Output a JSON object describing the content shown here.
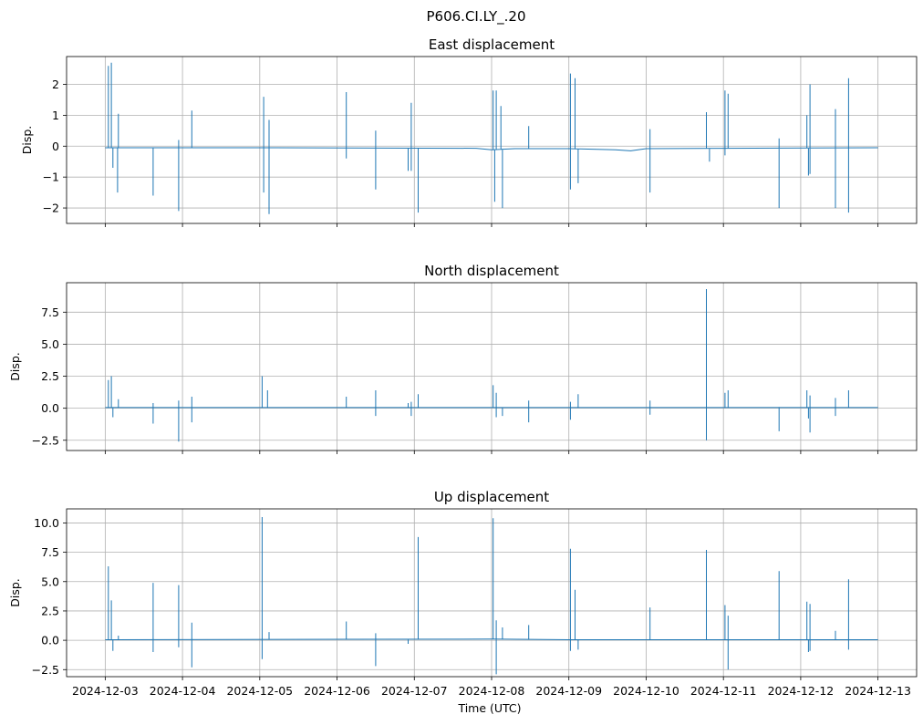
{
  "suptitle": "P606.CI.LY_.20",
  "xlabel": "Time (UTC)",
  "x_ticks": [
    "2024-12-03",
    "2024-12-04",
    "2024-12-05",
    "2024-12-06",
    "2024-12-07",
    "2024-12-08",
    "2024-12-09",
    "2024-12-10",
    "2024-12-11",
    "2024-12-12",
    "2024-12-13"
  ],
  "colors": {
    "line": "#1f77b4",
    "grid": "#b0b0b0"
  },
  "chart_data": [
    {
      "type": "line",
      "title": "East displacement",
      "ylabel": "Disp.",
      "xlim": [
        -0.5,
        10.5
      ],
      "ylim": [
        -2.5,
        2.9
      ],
      "y_ticks": [
        -2,
        -1,
        0,
        1,
        2
      ],
      "y_tick_labels": [
        "−2",
        "−1",
        "0",
        "1",
        "2"
      ],
      "baseline": [
        [
          0,
          -0.05
        ],
        [
          2.2,
          -0.05
        ],
        [
          4.8,
          -0.07
        ],
        [
          5.0,
          -0.12
        ],
        [
          5.3,
          -0.08
        ],
        [
          6.0,
          -0.08
        ],
        [
          6.6,
          -0.12
        ],
        [
          6.8,
          -0.15
        ],
        [
          7.0,
          -0.08
        ],
        [
          10.0,
          -0.05
        ]
      ],
      "spikes": [
        [
          0.04,
          2.6
        ],
        [
          0.08,
          2.7
        ],
        [
          0.1,
          -0.7
        ],
        [
          0.17,
          1.05
        ],
        [
          0.16,
          -1.5
        ],
        [
          0.62,
          -1.6
        ],
        [
          0.95,
          0.2
        ],
        [
          0.95,
          -2.1
        ],
        [
          1.12,
          1.15
        ],
        [
          2.05,
          1.6
        ],
        [
          2.05,
          -1.5
        ],
        [
          2.12,
          0.85
        ],
        [
          2.12,
          -2.2
        ],
        [
          3.12,
          1.75
        ],
        [
          3.12,
          -0.4
        ],
        [
          3.5,
          0.5
        ],
        [
          3.5,
          -1.4
        ],
        [
          3.92,
          -0.8
        ],
        [
          3.96,
          1.4
        ],
        [
          3.96,
          -0.8
        ],
        [
          4.05,
          -2.15
        ],
        [
          5.02,
          1.8
        ],
        [
          5.06,
          1.8
        ],
        [
          5.04,
          -1.8
        ],
        [
          5.12,
          1.3
        ],
        [
          5.14,
          -2.0
        ],
        [
          5.48,
          0.65
        ],
        [
          6.02,
          2.35
        ],
        [
          6.02,
          -1.4
        ],
        [
          6.08,
          2.2
        ],
        [
          6.12,
          -1.2
        ],
        [
          7.05,
          0.55
        ],
        [
          7.05,
          -1.5
        ],
        [
          7.78,
          1.1
        ],
        [
          7.82,
          -0.5
        ],
        [
          8.02,
          1.8
        ],
        [
          8.06,
          1.7
        ],
        [
          8.02,
          -0.3
        ],
        [
          8.72,
          0.25
        ],
        [
          8.72,
          -2.0
        ],
        [
          9.08,
          1.0
        ],
        [
          9.12,
          2.0
        ],
        [
          9.1,
          -0.95
        ],
        [
          9.12,
          -0.9
        ],
        [
          9.45,
          1.2
        ],
        [
          9.45,
          -2.0
        ],
        [
          9.62,
          2.2
        ],
        [
          9.62,
          -2.15
        ]
      ]
    },
    {
      "type": "line",
      "title": "North displacement",
      "ylabel": "Disp.",
      "xlim": [
        -0.5,
        10.5
      ],
      "ylim": [
        -3.3,
        9.8
      ],
      "y_ticks": [
        -2.5,
        0,
        2.5,
        5,
        7.5
      ],
      "y_tick_labels": [
        "−2.5",
        "0.0",
        "2.5",
        "5.0",
        "7.5"
      ],
      "baseline": [
        [
          0,
          0.05
        ],
        [
          10.0,
          0.05
        ]
      ],
      "spikes": [
        [
          0.04,
          2.2
        ],
        [
          0.08,
          2.5
        ],
        [
          0.1,
          -0.7
        ],
        [
          0.17,
          0.7
        ],
        [
          0.62,
          0.4
        ],
        [
          0.62,
          -1.2
        ],
        [
          0.95,
          0.6
        ],
        [
          0.95,
          -2.6
        ],
        [
          1.12,
          0.9
        ],
        [
          1.12,
          -1.1
        ],
        [
          2.03,
          2.5
        ],
        [
          2.1,
          1.4
        ],
        [
          3.12,
          0.9
        ],
        [
          3.5,
          1.4
        ],
        [
          3.5,
          -0.6
        ],
        [
          3.92,
          0.4
        ],
        [
          3.96,
          0.5
        ],
        [
          3.96,
          -0.6
        ],
        [
          4.05,
          1.1
        ],
        [
          5.02,
          1.8
        ],
        [
          5.06,
          1.2
        ],
        [
          5.06,
          -0.7
        ],
        [
          5.14,
          -0.6
        ],
        [
          5.48,
          0.6
        ],
        [
          5.48,
          -1.1
        ],
        [
          6.02,
          0.5
        ],
        [
          6.02,
          -0.9
        ],
        [
          6.12,
          1.1
        ],
        [
          7.05,
          0.6
        ],
        [
          7.05,
          -0.5
        ],
        [
          7.78,
          9.3
        ],
        [
          7.78,
          -2.5
        ],
        [
          8.02,
          1.2
        ],
        [
          8.06,
          1.4
        ],
        [
          8.72,
          0.1
        ],
        [
          8.72,
          -1.8
        ],
        [
          9.08,
          1.4
        ],
        [
          9.12,
          1.0
        ],
        [
          9.1,
          -0.8
        ],
        [
          9.12,
          -1.9
        ],
        [
          9.45,
          0.8
        ],
        [
          9.45,
          -0.6
        ],
        [
          9.62,
          1.4
        ]
      ]
    },
    {
      "type": "line",
      "title": "Up displacement",
      "ylabel": "Disp.",
      "xlim": [
        -0.5,
        10.5
      ],
      "ylim": [
        -3.1,
        11.2
      ],
      "y_ticks": [
        -2.5,
        0,
        2.5,
        5,
        7.5,
        10
      ],
      "y_tick_labels": [
        "−2.5",
        "0.0",
        "2.5",
        "5.0",
        "7.5",
        "10.0"
      ],
      "baseline": [
        [
          0,
          0.05
        ],
        [
          5.0,
          0.1
        ],
        [
          6.0,
          0.05
        ],
        [
          10.0,
          0.05
        ]
      ],
      "spikes": [
        [
          0.04,
          6.3
        ],
        [
          0.08,
          3.4
        ],
        [
          0.1,
          -0.9
        ],
        [
          0.17,
          0.4
        ],
        [
          0.62,
          4.9
        ],
        [
          0.62,
          -1.0
        ],
        [
          0.95,
          4.7
        ],
        [
          0.95,
          -0.6
        ],
        [
          1.12,
          1.5
        ],
        [
          1.12,
          -2.3
        ],
        [
          2.03,
          10.5
        ],
        [
          2.03,
          -1.6
        ],
        [
          2.12,
          0.7
        ],
        [
          3.12,
          1.6
        ],
        [
          3.5,
          0.6
        ],
        [
          3.5,
          -2.2
        ],
        [
          3.92,
          -0.3
        ],
        [
          4.05,
          8.8
        ],
        [
          5.02,
          10.4
        ],
        [
          5.06,
          1.7
        ],
        [
          5.06,
          -2.9
        ],
        [
          5.14,
          1.1
        ],
        [
          5.48,
          1.3
        ],
        [
          6.02,
          7.8
        ],
        [
          6.02,
          -0.9
        ],
        [
          6.08,
          4.3
        ],
        [
          6.12,
          -0.8
        ],
        [
          7.05,
          2.8
        ],
        [
          7.78,
          7.7
        ],
        [
          8.02,
          3.0
        ],
        [
          8.06,
          2.1
        ],
        [
          8.06,
          -2.5
        ],
        [
          8.72,
          5.9
        ],
        [
          9.08,
          3.3
        ],
        [
          9.12,
          3.1
        ],
        [
          9.1,
          -1.0
        ],
        [
          9.12,
          -0.9
        ],
        [
          9.45,
          0.8
        ],
        [
          9.62,
          5.2
        ],
        [
          9.62,
          -0.8
        ]
      ]
    }
  ]
}
